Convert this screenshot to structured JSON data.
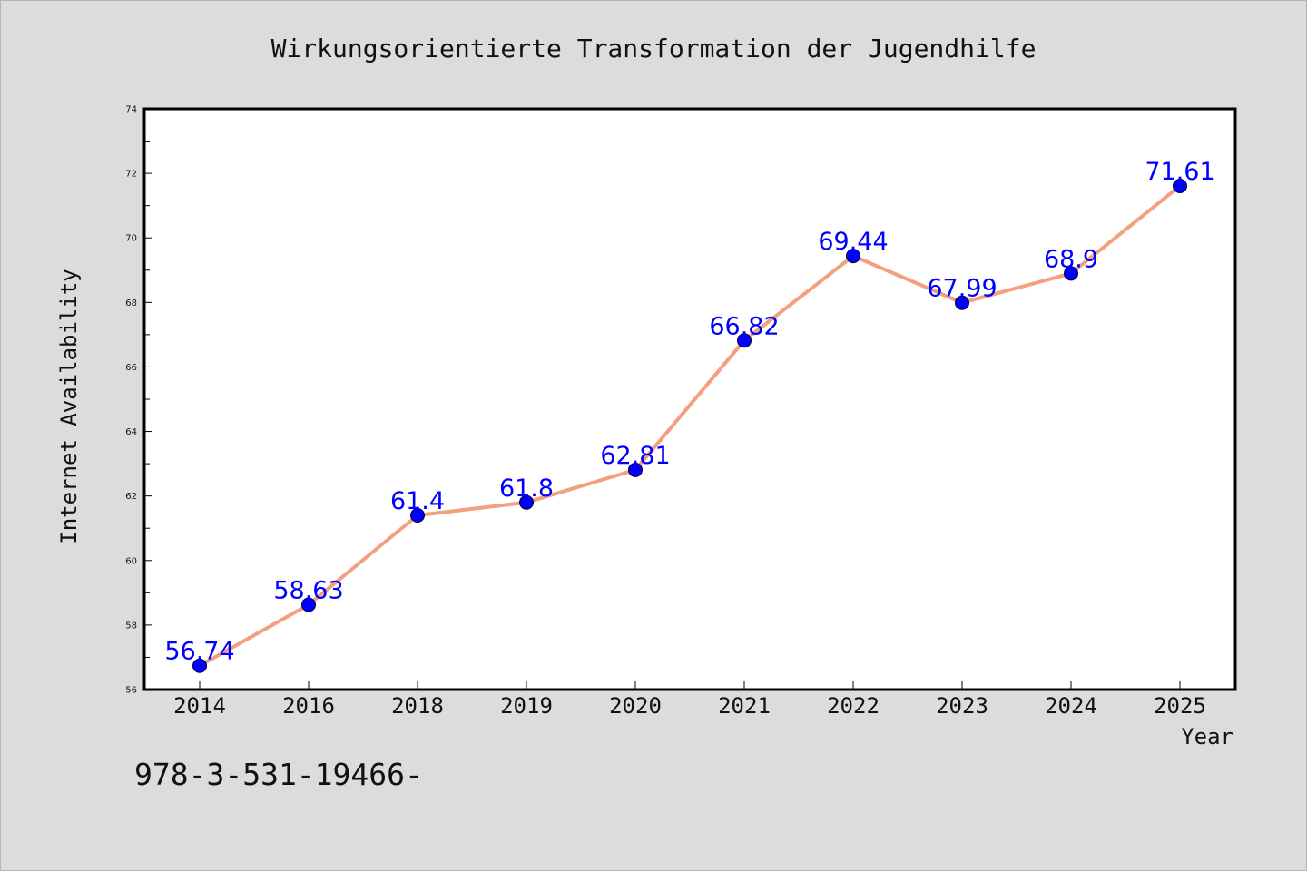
{
  "colors": {
    "background": "#dcdcdc",
    "plot_bg": "#ffffff",
    "line": "#f4a07e",
    "marker": "#0000ff",
    "data_label": "#0000ff"
  },
  "footnote": "978-3-531-19466-",
  "chart_data": {
    "type": "line",
    "title": "Wirkungsorientierte Transformation der Jugendhilfe",
    "xlabel": "Year",
    "ylabel": "Internet Availability",
    "categories": [
      "2014",
      "2016",
      "2018",
      "2019",
      "2020",
      "2021",
      "2022",
      "2023",
      "2024",
      "2025"
    ],
    "values": [
      56.74,
      58.63,
      61.4,
      61.8,
      62.81,
      66.82,
      69.44,
      67.99,
      68.9,
      71.61
    ],
    "data_labels": [
      "56.74",
      "58.63",
      "61.4",
      "61.8",
      "62.81",
      "66.82",
      "69.44",
      "67.99",
      "68.9",
      "71.61"
    ],
    "ylim": [
      56,
      74
    ],
    "yticks": [
      56,
      58,
      60,
      62,
      64,
      66,
      68,
      70,
      72,
      74
    ],
    "ytick_labels": [
      "56",
      "58",
      "60",
      "62",
      "64",
      "66",
      "68",
      "70",
      "72",
      "74"
    ],
    "grid": false,
    "legend": "none",
    "markers": true
  }
}
